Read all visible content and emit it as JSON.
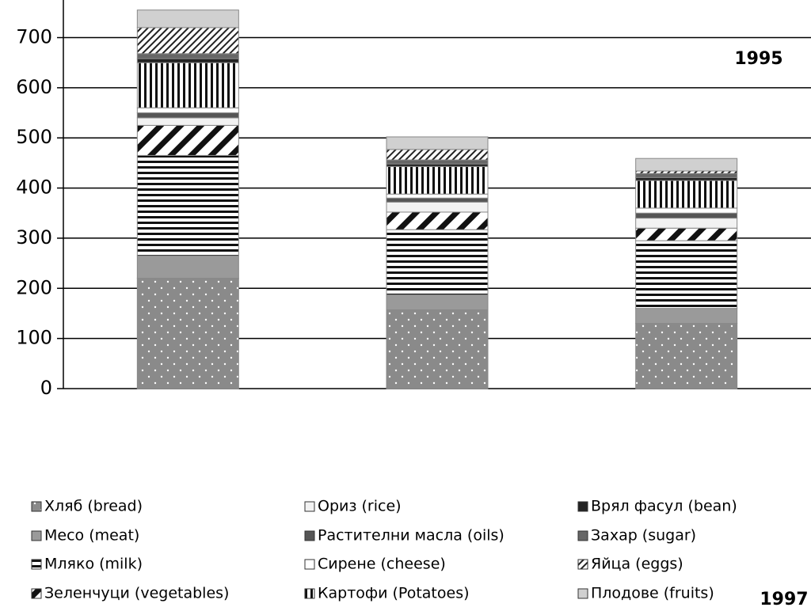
{
  "chart_data": {
    "type": "stacked_bar",
    "categories": [
      null,
      null,
      null
    ],
    "series": [
      {
        "name": "Хляб (bread)",
        "color": "#8a8a8a",
        "pattern": "dots",
        "values": [
          220,
          157,
          130
        ]
      },
      {
        "name": "Месо (meat)",
        "color": "#9a9a9a",
        "pattern": "solid",
        "values": [
          45,
          30,
          30
        ]
      },
      {
        "name": "Мляко (milk)",
        "color": "#ffffff",
        "pattern": "hlines",
        "values": [
          200,
          130,
          135
        ]
      },
      {
        "name": "Зеленчуци (vegetables)",
        "color": "#ffffff",
        "pattern": "diag",
        "values": [
          60,
          35,
          25
        ]
      },
      {
        "name": "Ориз (rice)",
        "color": "#f2f2f2",
        "pattern": "solid",
        "values": [
          15,
          20,
          20
        ]
      },
      {
        "name": "Растителни масла (oils)",
        "color": "#555555",
        "pattern": "solid",
        "values": [
          10,
          8,
          10
        ]
      },
      {
        "name": "Сирене (cheese)",
        "color": "#ffffff",
        "pattern": "solid",
        "values": [
          10,
          8,
          10
        ]
      },
      {
        "name": "Картофи (Potatoes)",
        "color": "#ffffff",
        "pattern": "vlines",
        "values": [
          90,
          55,
          55
        ]
      },
      {
        "name": "Врял фасул (bean)",
        "color": "#222222",
        "pattern": "solid",
        "values": [
          8,
          5,
          6
        ]
      },
      {
        "name": "Захар (sugar)",
        "color": "#666666",
        "pattern": "solid",
        "values": [
          10,
          8,
          8
        ]
      },
      {
        "name": "Яйца (eggs)",
        "color": "#ffffff",
        "pattern": "finediag",
        "values": [
          52,
          21,
          5
        ]
      },
      {
        "name": "Плодове (fruits)",
        "color": "#d0d0d0",
        "pattern": "solid",
        "values": [
          35,
          25,
          25
        ]
      }
    ],
    "ylim": [
      0,
      775
    ],
    "yticks": [
      0,
      100,
      200,
      300,
      400,
      500,
      600,
      700
    ],
    "grid": true,
    "annotations": [
      "1995",
      "1997"
    ]
  }
}
